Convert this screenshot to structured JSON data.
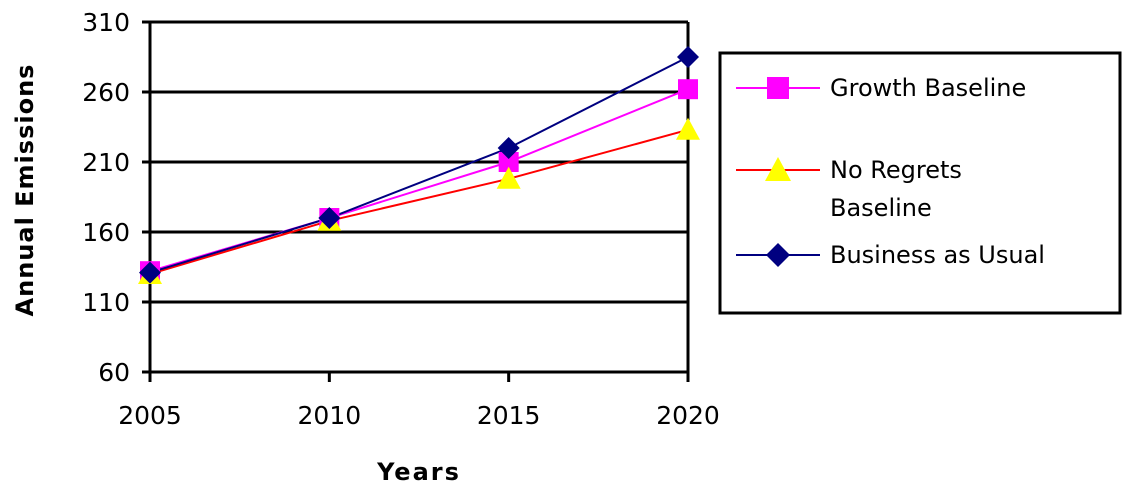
{
  "chart_data": {
    "type": "line",
    "x": [
      2005,
      2010,
      2015,
      2020
    ],
    "xticks": [
      "2005",
      "2010",
      "2015",
      "2020"
    ],
    "yticks": [
      "310",
      "260",
      "210",
      "160",
      "110",
      "60"
    ],
    "ylim": [
      60,
      310
    ],
    "xlabel": "Years",
    "ylabel": "Annual Emissions",
    "grid": "horizontal",
    "legend_position": "right",
    "series": [
      {
        "name": "Growth Baseline",
        "values": [
          132,
          170,
          210,
          262
        ],
        "color": "#ff00ff",
        "marker": "square",
        "marker_color": "#ff00ff"
      },
      {
        "name": "No Regrets Baseline",
        "values": [
          130,
          168,
          198,
          233
        ],
        "color": "#ff0000",
        "marker": "triangle",
        "marker_color": "#ffff00"
      },
      {
        "name": "Business as Usual",
        "values": [
          131,
          170,
          220,
          285
        ],
        "color": "#000080",
        "marker": "diamond",
        "marker_color": "#000080"
      }
    ]
  }
}
